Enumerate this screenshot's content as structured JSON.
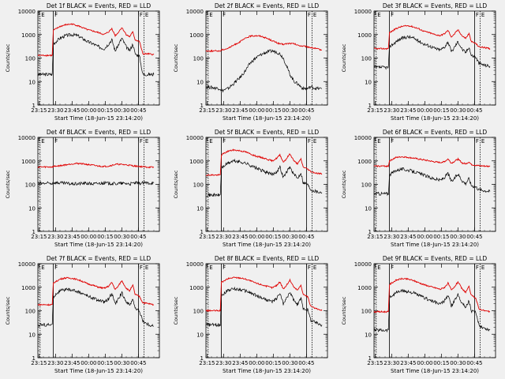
{
  "x_tick_labels": [
    "23:15",
    "23:30",
    "23:45",
    "00:00",
    "00:15",
    "00:30",
    "00:45"
  ],
  "xlabel": "Start Time (18-Jun-15 23:14:20)",
  "ylabel": "Counts/sec",
  "y_tick_labels": [
    "1",
    "10",
    "100",
    "1000",
    "10000"
  ],
  "colors": {
    "events": "#000000",
    "lld": "#e00000",
    "axis": "#000000",
    "background": "#f0f0f0"
  },
  "chart_data": [
    {
      "type": "line",
      "title": "Det 1f BLACK = Events, RED = LLD",
      "marker_labels": [
        "E",
        "F",
        "F",
        "E"
      ],
      "x_minutes": [
        0,
        13,
        14,
        20,
        25,
        31,
        36,
        40,
        45,
        50,
        55,
        60,
        64,
        67,
        70,
        72,
        76,
        80,
        83,
        86,
        88,
        92,
        95,
        100,
        105
      ],
      "series": [
        {
          "name": "BLACK",
          "values": [
            20,
            20,
            400,
            700,
            900,
            1000,
            900,
            700,
            500,
            400,
            300,
            250,
            400,
            600,
            200,
            300,
            700,
            300,
            200,
            400,
            150,
            120,
            20,
            20,
            20
          ]
        },
        {
          "name": "RED",
          "values": [
            130,
            130,
            1500,
            2200,
            2600,
            2800,
            2400,
            2000,
            1600,
            1400,
            1200,
            1000,
            1300,
            1800,
            900,
            1100,
            2000,
            1000,
            800,
            1300,
            600,
            500,
            150,
            150,
            140
          ]
        }
      ],
      "ylim": [
        1,
        10000
      ],
      "xlim": [
        0,
        110
      ],
      "yscale": "log"
    },
    {
      "type": "line",
      "title": "Det 2f BLACK = Events, RED = LLD",
      "marker_labels": [
        "E",
        "F",
        "F",
        "E"
      ],
      "x_minutes": [
        0,
        13,
        14,
        20,
        25,
        31,
        36,
        40,
        45,
        50,
        55,
        60,
        64,
        67,
        70,
        72,
        76,
        80,
        83,
        86,
        88,
        92,
        95,
        100,
        105
      ],
      "series": [
        {
          "name": "BLACK",
          "values": [
            6,
            5,
            4,
            5,
            8,
            15,
            30,
            60,
            100,
            140,
            180,
            200,
            180,
            150,
            100,
            60,
            20,
            10,
            8,
            6,
            5,
            5,
            6,
            5,
            5
          ]
        },
        {
          "name": "RED",
          "values": [
            200,
            200,
            220,
            260,
            350,
            500,
            700,
            850,
            900,
            850,
            700,
            550,
            450,
            400,
            380,
            400,
            420,
            400,
            350,
            330,
            320,
            300,
            280,
            250,
            220
          ]
        }
      ],
      "ylim": [
        1,
        10000
      ],
      "xlim": [
        0,
        110
      ],
      "yscale": "log"
    },
    {
      "type": "line",
      "title": "Det 3f BLACK = Events, RED = LLD",
      "marker_labels": [
        "E",
        "F",
        "F",
        "E"
      ],
      "x_minutes": [
        0,
        13,
        14,
        20,
        25,
        31,
        36,
        40,
        45,
        50,
        55,
        60,
        64,
        67,
        70,
        72,
        76,
        80,
        83,
        86,
        88,
        92,
        95,
        100,
        105
      ],
      "series": [
        {
          "name": "BLACK",
          "values": [
            40,
            40,
            300,
            500,
            700,
            800,
            700,
            550,
            400,
            330,
            260,
            220,
            300,
            500,
            180,
            250,
            500,
            230,
            170,
            300,
            130,
            110,
            60,
            50,
            45
          ]
        },
        {
          "name": "RED",
          "values": [
            250,
            250,
            1200,
            1800,
            2200,
            2400,
            2100,
            1800,
            1400,
            1200,
            1000,
            900,
            1100,
            1500,
            800,
            950,
            1600,
            850,
            700,
            1100,
            500,
            420,
            300,
            280,
            250
          ]
        }
      ],
      "ylim": [
        1,
        10000
      ],
      "xlim": [
        0,
        110
      ],
      "yscale": "log"
    },
    {
      "type": "line",
      "title": "Det 4f BLACK = Events, RED = LLD",
      "marker_labels": [
        "E",
        "F",
        "F",
        "E"
      ],
      "x_minutes": [
        0,
        13,
        14,
        20,
        25,
        31,
        36,
        40,
        45,
        50,
        55,
        60,
        64,
        67,
        70,
        72,
        76,
        80,
        83,
        86,
        88,
        92,
        95,
        100,
        105
      ],
      "series": [
        {
          "name": "BLACK",
          "values": [
            110,
            110,
            120,
            115,
            110,
            105,
            105,
            110,
            110,
            105,
            110,
            115,
            110,
            110,
            105,
            110,
            110,
            110,
            105,
            110,
            115,
            110,
            115,
            115,
            115
          ]
        },
        {
          "name": "RED",
          "values": [
            550,
            550,
            580,
            620,
            680,
            750,
            780,
            760,
            700,
            650,
            600,
            580,
            600,
            650,
            700,
            720,
            700,
            680,
            650,
            620,
            600,
            580,
            560,
            540,
            530
          ]
        }
      ],
      "ylim": [
        1,
        10000
      ],
      "xlim": [
        0,
        110
      ],
      "yscale": "log"
    },
    {
      "type": "line",
      "title": "Det 5f BLACK = Events, RED = LLD",
      "marker_labels": [
        "E",
        "F",
        "F",
        "E"
      ],
      "x_minutes": [
        0,
        13,
        14,
        20,
        25,
        31,
        36,
        40,
        45,
        50,
        55,
        60,
        64,
        67,
        70,
        72,
        76,
        80,
        83,
        86,
        88,
        92,
        95,
        100,
        105
      ],
      "series": [
        {
          "name": "BLACK",
          "values": [
            35,
            35,
            500,
            800,
            1000,
            900,
            800,
            650,
            500,
            400,
            320,
            260,
            350,
            550,
            200,
            280,
            550,
            250,
            180,
            320,
            120,
            100,
            60,
            50,
            45
          ]
        },
        {
          "name": "RED",
          "values": [
            250,
            250,
            1800,
            2600,
            2900,
            2700,
            2400,
            2000,
            1600,
            1400,
            1200,
            1000,
            1300,
            1800,
            900,
            1100,
            2000,
            950,
            750,
            1200,
            550,
            450,
            350,
            300,
            280
          ]
        }
      ],
      "ylim": [
        1,
        10000
      ],
      "xlim": [
        0,
        110
      ],
      "yscale": "log"
    },
    {
      "type": "line",
      "title": "Det 6f BLACK = Events, RED = LLD",
      "marker_labels": [
        "E",
        "F",
        "F",
        "E"
      ],
      "x_minutes": [
        0,
        13,
        14,
        20,
        25,
        31,
        36,
        40,
        45,
        50,
        55,
        60,
        64,
        67,
        70,
        72,
        76,
        80,
        83,
        86,
        88,
        92,
        95,
        100,
        105
      ],
      "series": [
        {
          "name": "BLACK",
          "values": [
            40,
            40,
            250,
            400,
            450,
            400,
            350,
            300,
            250,
            200,
            170,
            150,
            200,
            300,
            130,
            160,
            280,
            140,
            110,
            180,
            90,
            80,
            60,
            55,
            50
          ]
        },
        {
          "name": "RED",
          "values": [
            600,
            600,
            1000,
            1400,
            1500,
            1400,
            1300,
            1200,
            1100,
            1000,
            900,
            850,
            950,
            1200,
            800,
            900,
            1200,
            800,
            750,
            900,
            700,
            650,
            620,
            600,
            580
          ]
        }
      ],
      "ylim": [
        1,
        10000
      ],
      "xlim": [
        0,
        110
      ],
      "yscale": "log"
    },
    {
      "type": "line",
      "title": "Det 7f BLACK = Events, RED = LLD",
      "marker_labels": [
        "E",
        "F",
        "F",
        "E"
      ],
      "x_minutes": [
        0,
        13,
        14,
        20,
        25,
        31,
        36,
        40,
        45,
        50,
        55,
        60,
        64,
        67,
        70,
        72,
        76,
        80,
        83,
        86,
        88,
        92,
        95,
        100,
        105
      ],
      "series": [
        {
          "name": "BLACK",
          "values": [
            25,
            25,
            400,
            700,
            800,
            750,
            650,
            550,
            420,
            340,
            280,
            230,
            320,
            550,
            190,
            260,
            600,
            240,
            170,
            330,
            120,
            100,
            35,
            25,
            22
          ]
        },
        {
          "name": "RED",
          "values": [
            180,
            180,
            1500,
            2200,
            2500,
            2400,
            2100,
            1800,
            1400,
            1200,
            1000,
            900,
            1100,
            1600,
            800,
            1000,
            1900,
            900,
            700,
            1200,
            500,
            400,
            220,
            200,
            180
          ]
        }
      ],
      "ylim": [
        1,
        10000
      ],
      "xlim": [
        0,
        110
      ],
      "yscale": "log"
    },
    {
      "type": "line",
      "title": "Det 8f BLACK = Events, RED = LLD",
      "marker_labels": [
        "E",
        "F",
        "F",
        "E"
      ],
      "x_minutes": [
        0,
        13,
        14,
        20,
        25,
        31,
        36,
        40,
        45,
        50,
        55,
        60,
        64,
        67,
        70,
        72,
        76,
        80,
        83,
        86,
        88,
        92,
        95,
        100,
        105
      ],
      "series": [
        {
          "name": "BLACK",
          "values": [
            25,
            25,
            450,
            750,
            850,
            800,
            700,
            580,
            450,
            360,
            290,
            240,
            330,
            560,
            200,
            270,
            620,
            250,
            180,
            340,
            130,
            110,
            40,
            30,
            25
          ]
        },
        {
          "name": "RED",
          "values": [
            100,
            100,
            1600,
            2300,
            2600,
            2500,
            2200,
            1900,
            1500,
            1300,
            1100,
            950,
            1200,
            1700,
            850,
            1050,
            2000,
            950,
            750,
            1250,
            500,
            400,
            150,
            120,
            100
          ]
        }
      ],
      "ylim": [
        1,
        10000
      ],
      "xlim": [
        0,
        110
      ],
      "yscale": "log"
    },
    {
      "type": "line",
      "title": "Det 9f BLACK = Events, RED = LLD",
      "marker_labels": [
        "E",
        "F",
        "F",
        "E"
      ],
      "x_minutes": [
        0,
        13,
        14,
        20,
        25,
        31,
        36,
        40,
        45,
        50,
        55,
        60,
        64,
        67,
        70,
        72,
        76,
        80,
        83,
        86,
        88,
        92,
        95,
        100,
        105
      ],
      "series": [
        {
          "name": "BLACK",
          "values": [
            15,
            15,
            350,
            600,
            700,
            650,
            560,
            460,
            360,
            290,
            230,
            190,
            270,
            460,
            160,
            220,
            500,
            200,
            140,
            270,
            100,
            80,
            25,
            18,
            15
          ]
        },
        {
          "name": "RED",
          "values": [
            90,
            90,
            1300,
            2000,
            2300,
            2200,
            1900,
            1600,
            1300,
            1100,
            950,
            820,
            1000,
            1500,
            750,
            900,
            1700,
            800,
            620,
            1050,
            450,
            350,
            120,
            100,
            90
          ]
        }
      ],
      "ylim": [
        1,
        10000
      ],
      "xlim": [
        0,
        110
      ],
      "yscale": "log"
    }
  ]
}
